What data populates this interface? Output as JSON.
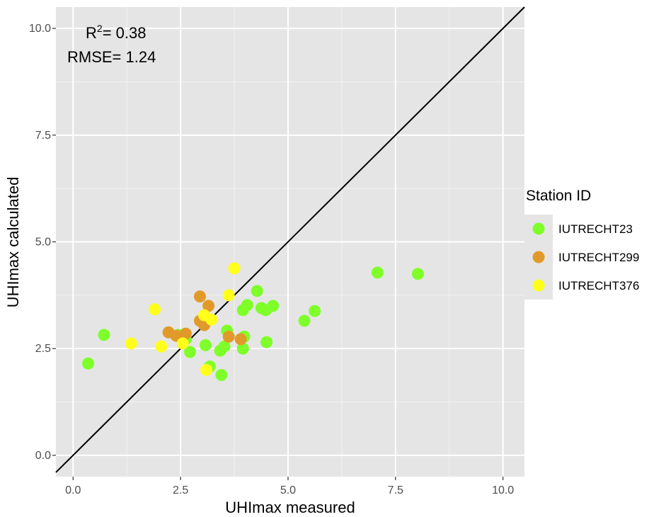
{
  "chart_data": {
    "type": "scatter",
    "xlabel": "UHImax measured",
    "ylabel": "UHImax calculated",
    "xlim": [
      -0.4,
      10.5
    ],
    "ylim": [
      -0.5,
      10.5
    ],
    "x_ticks": [
      "0.0",
      "2.5",
      "5.0",
      "7.5",
      "10.0"
    ],
    "y_ticks": [
      "0.0",
      "2.5",
      "5.0",
      "7.5",
      "10.0"
    ],
    "grid": true,
    "identity_line": true,
    "annotations": {
      "r2_label": "R",
      "r2_sup": "2",
      "r2_value": "= 0.38",
      "rmse": "RMSE= 1.24"
    },
    "legend": {
      "title": "Station ID",
      "position": "right"
    },
    "series": [
      {
        "name": "IUTRECHT23",
        "color": "#7fff2a",
        "points": [
          [
            0.35,
            2.15
          ],
          [
            0.72,
            2.82
          ],
          [
            2.45,
            2.82
          ],
          [
            2.62,
            2.72
          ],
          [
            2.72,
            2.42
          ],
          [
            3.08,
            2.58
          ],
          [
            3.18,
            2.08
          ],
          [
            3.42,
            2.45
          ],
          [
            3.45,
            1.88
          ],
          [
            3.52,
            2.55
          ],
          [
            3.58,
            2.92
          ],
          [
            3.95,
            3.4
          ],
          [
            3.95,
            2.5
          ],
          [
            3.98,
            2.78
          ],
          [
            4.05,
            3.52
          ],
          [
            4.28,
            3.85
          ],
          [
            4.38,
            3.45
          ],
          [
            4.48,
            3.4
          ],
          [
            4.5,
            2.65
          ],
          [
            4.65,
            3.5
          ],
          [
            5.38,
            3.15
          ],
          [
            5.62,
            3.38
          ],
          [
            7.08,
            4.28
          ],
          [
            8.02,
            4.25
          ]
        ]
      },
      {
        "name": "IUTRECHT299",
        "color": "#e19a29",
        "points": [
          [
            2.22,
            2.88
          ],
          [
            2.4,
            2.8
          ],
          [
            2.62,
            2.85
          ],
          [
            2.95,
            3.15
          ],
          [
            2.95,
            3.72
          ],
          [
            3.05,
            3.05
          ],
          [
            3.15,
            3.5
          ],
          [
            3.62,
            2.78
          ],
          [
            3.9,
            2.72
          ]
        ]
      },
      {
        "name": "IUTRECHT376",
        "color": "#ffff1a",
        "points": [
          [
            1.35,
            2.62
          ],
          [
            1.9,
            3.42
          ],
          [
            2.05,
            2.55
          ],
          [
            2.55,
            2.62
          ],
          [
            3.05,
            3.28
          ],
          [
            3.1,
            2.0
          ],
          [
            3.22,
            3.18
          ],
          [
            3.62,
            3.75
          ],
          [
            3.75,
            4.38
          ]
        ]
      }
    ]
  }
}
